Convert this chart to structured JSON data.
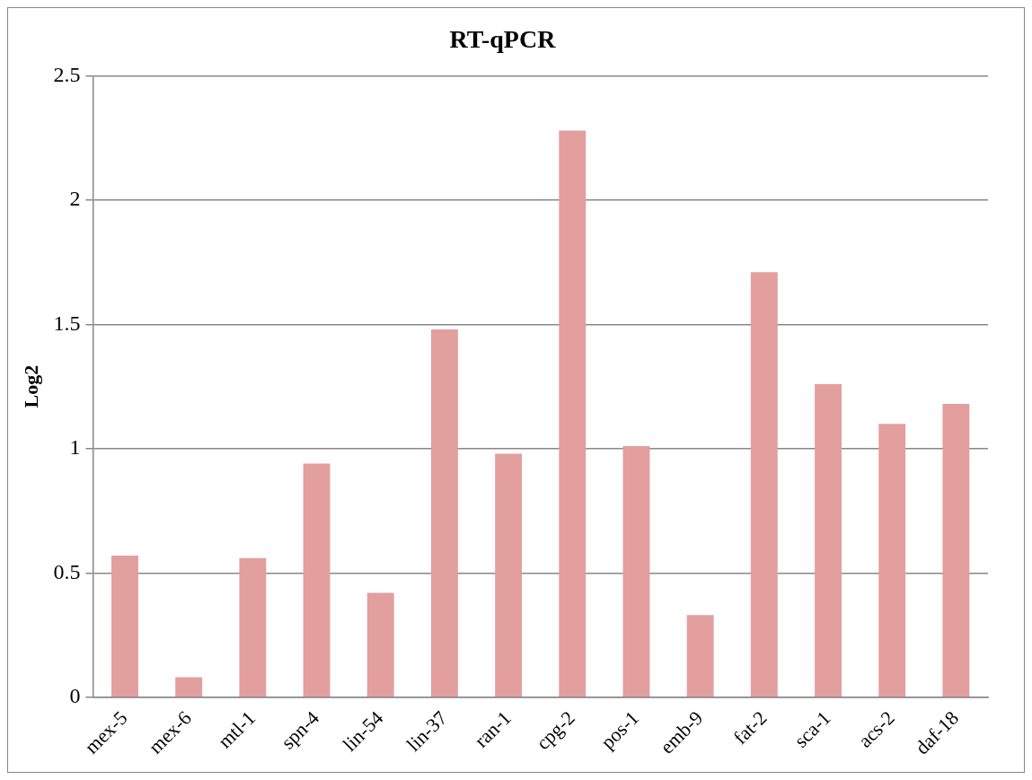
{
  "chart_data": {
    "type": "bar",
    "title": "RT-qPCR",
    "ylabel": "Log2",
    "categories": [
      "mex-5",
      "mex-6",
      "mtl-1",
      "spn-4",
      "lin-54",
      "lin-37",
      "ran-1",
      "cpg-2",
      "pos-1",
      "emb-9",
      "fat-2",
      "sca-1",
      "acs-2",
      "daf-18"
    ],
    "values": [
      0.57,
      0.08,
      0.56,
      0.94,
      0.42,
      1.48,
      0.98,
      2.28,
      1.01,
      0.33,
      1.71,
      1.26,
      1.1,
      1.18
    ],
    "color": "#e39e9e",
    "ylim": [
      0,
      2.5
    ],
    "yticks": [
      0,
      0.5,
      1,
      1.5,
      2,
      2.5
    ],
    "grid": "y",
    "legend": false
  }
}
